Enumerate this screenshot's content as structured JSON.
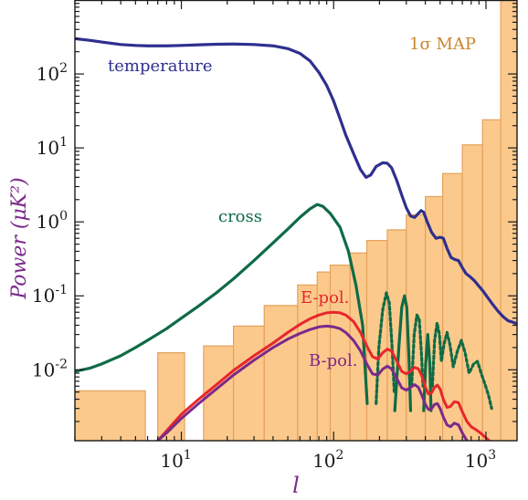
{
  "chart_data": {
    "type": "line",
    "xscale": "log",
    "yscale": "log",
    "xlim": [
      2,
      1600
    ],
    "ylim": [
      0.0011,
      1000
    ],
    "xlabel": "l",
    "ylabel": "Power (μK²)",
    "x_ticks": [
      {
        "value": 10,
        "base": "10",
        "exp": "1"
      },
      {
        "value": 100,
        "base": "10",
        "exp": "2"
      },
      {
        "value": 1000,
        "base": "10",
        "exp": "3"
      }
    ],
    "y_ticks": [
      {
        "value": 0.01,
        "base": "10",
        "exp": "-2"
      },
      {
        "value": 0.1,
        "base": "10",
        "exp": "-1"
      },
      {
        "value": 1,
        "base": "10",
        "exp": "0"
      },
      {
        "value": 10,
        "base": "10",
        "exp": "1"
      },
      {
        "value": 100,
        "base": "10",
        "exp": "2"
      }
    ],
    "colors": {
      "temperature": "#2e2f8f",
      "cross": "#0f6b45",
      "epol": "#e8262b",
      "bpol": "#7a2a8a",
      "bars_fill": "#fcc98c",
      "bars_stroke": "#e3a25c",
      "map_label": "#c9852f",
      "ylabel": "#7a2a8a",
      "xlabel": "#7a2a8a"
    },
    "annotations": {
      "temperature": "temperature",
      "cross": "cross",
      "epol": "E-pol.",
      "bpol": "B-pol.",
      "map": "1σ MAP"
    },
    "map_bins": [
      {
        "l_lo": 2,
        "l_hi": 5.8,
        "value": 0.0052
      },
      {
        "l_lo": 7,
        "l_hi": 10.5,
        "value": 0.017
      },
      {
        "l_lo": 14,
        "l_hi": 22,
        "value": 0.021
      },
      {
        "l_lo": 22,
        "l_hi": 35,
        "value": 0.039
      },
      {
        "l_lo": 35,
        "l_hi": 58,
        "value": 0.074
      },
      {
        "l_lo": 58,
        "l_hi": 78,
        "value": 0.14
      },
      {
        "l_lo": 78,
        "l_hi": 95,
        "value": 0.21
      },
      {
        "l_lo": 95,
        "l_hi": 128,
        "value": 0.26
      },
      {
        "l_lo": 128,
        "l_hi": 165,
        "value": 0.38
      },
      {
        "l_lo": 165,
        "l_hi": 225,
        "value": 0.56
      },
      {
        "l_lo": 225,
        "l_hi": 300,
        "value": 0.78
      },
      {
        "l_lo": 300,
        "l_hi": 400,
        "value": 1.25
      },
      {
        "l_lo": 400,
        "l_hi": 520,
        "value": 2.2
      },
      {
        "l_lo": 520,
        "l_hi": 700,
        "value": 4.5
      },
      {
        "l_lo": 700,
        "l_hi": 950,
        "value": 11
      },
      {
        "l_lo": 950,
        "l_hi": 1250,
        "value": 24
      },
      {
        "l_lo": 1250,
        "l_hi": 1600,
        "value": 1000
      }
    ],
    "series": [
      {
        "key": "temperature",
        "points": [
          [
            2,
            300
          ],
          [
            2.5,
            285
          ],
          [
            3,
            270
          ],
          [
            4,
            250
          ],
          [
            5,
            243
          ],
          [
            6,
            240
          ],
          [
            8,
            240
          ],
          [
            10,
            243
          ],
          [
            13,
            248
          ],
          [
            17,
            252
          ],
          [
            22,
            254
          ],
          [
            30,
            250
          ],
          [
            40,
            240
          ],
          [
            50,
            220
          ],
          [
            60,
            190
          ],
          [
            70,
            150
          ],
          [
            80,
            105
          ],
          [
            90,
            70
          ],
          [
            100,
            43
          ],
          [
            110,
            25
          ],
          [
            120,
            15
          ],
          [
            135,
            8.4
          ],
          [
            150,
            5.1
          ],
          [
            163,
            4.0
          ],
          [
            175,
            4.3
          ],
          [
            190,
            5.6
          ],
          [
            210,
            6.3
          ],
          [
            225,
            6.2
          ],
          [
            240,
            5.4
          ],
          [
            260,
            3.6
          ],
          [
            280,
            2.3
          ],
          [
            300,
            1.55
          ],
          [
            320,
            1.2
          ],
          [
            340,
            1.15
          ],
          [
            360,
            1.3
          ],
          [
            375,
            1.42
          ],
          [
            390,
            1.35
          ],
          [
            410,
            1.02
          ],
          [
            440,
            0.72
          ],
          [
            470,
            0.6
          ],
          [
            500,
            0.62
          ],
          [
            525,
            0.6
          ],
          [
            555,
            0.44
          ],
          [
            590,
            0.33
          ],
          [
            625,
            0.31
          ],
          [
            660,
            0.3
          ],
          [
            700,
            0.24
          ],
          [
            740,
            0.2
          ],
          [
            790,
            0.18
          ],
          [
            840,
            0.16
          ],
          [
            900,
            0.135
          ],
          [
            960,
            0.115
          ],
          [
            1030,
            0.094
          ],
          [
            1100,
            0.078
          ],
          [
            1200,
            0.062
          ],
          [
            1300,
            0.052
          ],
          [
            1400,
            0.046
          ],
          [
            1500,
            0.044
          ],
          [
            1600,
            0.042
          ]
        ]
      },
      {
        "key": "cross",
        "points": [
          [
            2,
            0.0095
          ],
          [
            2.5,
            0.0105
          ],
          [
            3,
            0.012
          ],
          [
            4,
            0.0155
          ],
          [
            5,
            0.02
          ],
          [
            6,
            0.025
          ],
          [
            8,
            0.036
          ],
          [
            10,
            0.05
          ],
          [
            13,
            0.073
          ],
          [
            17,
            0.11
          ],
          [
            22,
            0.17
          ],
          [
            30,
            0.3
          ],
          [
            40,
            0.52
          ],
          [
            50,
            0.8
          ],
          [
            60,
            1.15
          ],
          [
            70,
            1.5
          ],
          [
            78,
            1.72
          ],
          [
            85,
            1.62
          ],
          [
            95,
            1.3
          ],
          [
            110,
            0.85
          ],
          [
            125,
            0.4
          ],
          [
            140,
            0.14
          ],
          [
            155,
            0.04
          ],
          [
            166,
            0.0035
          ]
        ]
      },
      {
        "key": "cross_peak",
        "points": [
          [
            252,
            0.0028
          ],
          [
            268,
            0.02
          ],
          [
            280,
            0.07
          ],
          [
            292,
            0.1
          ],
          [
            302,
            0.07
          ],
          [
            312,
            0.015
          ],
          [
            320,
            0.0028
          ]
        ]
      },
      {
        "key": "cross_peak",
        "points": [
          [
            390,
            0.0028
          ],
          [
            402,
            0.012
          ],
          [
            415,
            0.03
          ],
          [
            428,
            0.012
          ],
          [
            436,
            0.0028
          ]
        ]
      },
      {
        "key": "cross_dotted",
        "points": [
          [
            190,
            0.0035
          ],
          [
            198,
            0.02
          ],
          [
            210,
            0.065
          ],
          [
            222,
            0.11
          ],
          [
            232,
            0.08
          ],
          [
            242,
            0.02
          ],
          [
            250,
            0.005
          ]
        ]
      },
      {
        "key": "cross_dotted",
        "points": [
          [
            325,
            0.006
          ],
          [
            338,
            0.03
          ],
          [
            352,
            0.055
          ],
          [
            365,
            0.048
          ],
          [
            378,
            0.015
          ],
          [
            386,
            0.006
          ]
        ]
      },
      {
        "key": "cross_dotted",
        "points": [
          [
            445,
            0.006
          ],
          [
            460,
            0.025
          ],
          [
            478,
            0.043
          ],
          [
            495,
            0.03
          ],
          [
            510,
            0.013
          ],
          [
            530,
            0.022
          ],
          [
            555,
            0.032
          ],
          [
            580,
            0.022
          ],
          [
            610,
            0.011
          ],
          [
            650,
            0.018
          ],
          [
            690,
            0.025
          ],
          [
            730,
            0.017
          ],
          [
            775,
            0.009
          ],
          [
            830,
            0.012
          ],
          [
            880,
            0.013
          ],
          [
            930,
            0.009
          ],
          [
            990,
            0.0062
          ],
          [
            1040,
            0.0045
          ],
          [
            1090,
            0.003
          ]
        ]
      },
      {
        "key": "epol",
        "points": [
          [
            7,
            0.0011
          ],
          [
            8,
            0.0015
          ],
          [
            10,
            0.0025
          ],
          [
            13,
            0.004
          ],
          [
            17,
            0.0063
          ],
          [
            22,
            0.0098
          ],
          [
            30,
            0.0155
          ],
          [
            40,
            0.023
          ],
          [
            50,
            0.032
          ],
          [
            60,
            0.041
          ],
          [
            70,
            0.049
          ],
          [
            80,
            0.055
          ],
          [
            90,
            0.059
          ],
          [
            100,
            0.06
          ],
          [
            110,
            0.059
          ],
          [
            120,
            0.055
          ],
          [
            135,
            0.045
          ],
          [
            150,
            0.032
          ],
          [
            165,
            0.021
          ],
          [
            180,
            0.015
          ],
          [
            195,
            0.014
          ],
          [
            210,
            0.017
          ],
          [
            225,
            0.019
          ],
          [
            240,
            0.018
          ],
          [
            260,
            0.013
          ],
          [
            280,
            0.0095
          ],
          [
            300,
            0.0088
          ],
          [
            320,
            0.0096
          ],
          [
            340,
            0.0108
          ],
          [
            360,
            0.0103
          ],
          [
            380,
            0.0082
          ],
          [
            400,
            0.0058
          ],
          [
            420,
            0.0047
          ],
          [
            440,
            0.0049
          ],
          [
            460,
            0.0058
          ],
          [
            480,
            0.0062
          ],
          [
            500,
            0.0055
          ],
          [
            525,
            0.004
          ],
          [
            555,
            0.0031
          ],
          [
            585,
            0.0032
          ],
          [
            620,
            0.0037
          ],
          [
            660,
            0.0036
          ],
          [
            700,
            0.0027
          ],
          [
            750,
            0.002
          ],
          [
            800,
            0.0017
          ],
          [
            860,
            0.00155
          ],
          [
            920,
            0.0014
          ],
          [
            980,
            0.00125
          ],
          [
            1050,
            0.0011
          ]
        ]
      },
      {
        "key": "bpol",
        "points": [
          [
            7,
            0.0011
          ],
          [
            8,
            0.0014
          ],
          [
            10,
            0.0022
          ],
          [
            13,
            0.0035
          ],
          [
            17,
            0.0055
          ],
          [
            22,
            0.0085
          ],
          [
            30,
            0.0135
          ],
          [
            40,
            0.02
          ],
          [
            50,
            0.026
          ],
          [
            60,
            0.031
          ],
          [
            70,
            0.035
          ],
          [
            80,
            0.038
          ],
          [
            90,
            0.039
          ],
          [
            100,
            0.038
          ],
          [
            110,
            0.036
          ],
          [
            120,
            0.032
          ],
          [
            135,
            0.025
          ],
          [
            150,
            0.018
          ],
          [
            165,
            0.012
          ],
          [
            180,
            0.0088
          ],
          [
            195,
            0.0085
          ],
          [
            210,
            0.0102
          ],
          [
            225,
            0.0112
          ],
          [
            240,
            0.0103
          ],
          [
            260,
            0.0076
          ],
          [
            280,
            0.0057
          ],
          [
            300,
            0.0053
          ],
          [
            320,
            0.0058
          ],
          [
            340,
            0.0063
          ],
          [
            360,
            0.0058
          ],
          [
            380,
            0.0045
          ],
          [
            400,
            0.0034
          ],
          [
            420,
            0.0029
          ],
          [
            440,
            0.003
          ],
          [
            460,
            0.0034
          ],
          [
            480,
            0.0035
          ],
          [
            500,
            0.003
          ],
          [
            525,
            0.0023
          ],
          [
            555,
            0.0018
          ],
          [
            585,
            0.0017
          ],
          [
            620,
            0.0019
          ],
          [
            660,
            0.0018
          ],
          [
            700,
            0.0014
          ],
          [
            740,
            0.00115
          ],
          [
            780,
            0.001
          ]
        ]
      }
    ]
  }
}
